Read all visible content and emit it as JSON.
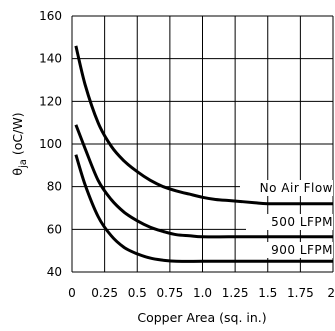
{
  "chart_data": {
    "type": "line",
    "title": "",
    "xlabel": "Copper Area (sq. in.)",
    "ylabel": "θja (oC/W)",
    "xlim": [
      0,
      2
    ],
    "ylim": [
      40,
      160
    ],
    "grid": true,
    "x_ticks": [
      0,
      0.25,
      0.5,
      0.75,
      1,
      1.25,
      1.5,
      1.75,
      2
    ],
    "x_tick_labels": [
      "0",
      "0.25",
      "0.5",
      "0.75",
      "1.0",
      "1.25",
      "1.5",
      "1.75",
      "2"
    ],
    "y_ticks": [
      40,
      60,
      80,
      100,
      120,
      140,
      160
    ],
    "y_tick_labels": [
      "40",
      "60",
      "80",
      "100",
      "120",
      "140",
      "160"
    ],
    "series": [
      {
        "name": "No Air Flow",
        "points": [
          [
            0.03,
            146
          ],
          [
            0.1,
            128
          ],
          [
            0.2,
            110
          ],
          [
            0.3,
            99
          ],
          [
            0.4,
            92
          ],
          [
            0.5,
            87
          ],
          [
            0.6,
            83
          ],
          [
            0.7,
            80
          ],
          [
            0.8,
            78
          ],
          [
            0.9,
            76.5
          ],
          [
            1.0,
            75
          ],
          [
            1.1,
            74
          ],
          [
            1.2,
            73.5
          ],
          [
            1.3,
            73
          ],
          [
            1.4,
            72.5
          ],
          [
            1.5,
            72
          ],
          [
            1.75,
            72
          ],
          [
            2.0,
            72
          ]
        ]
      },
      {
        "name": "500 LFPM",
        "points": [
          [
            0.03,
            109
          ],
          [
            0.1,
            98
          ],
          [
            0.2,
            83
          ],
          [
            0.3,
            74
          ],
          [
            0.4,
            68
          ],
          [
            0.5,
            64
          ],
          [
            0.6,
            61
          ],
          [
            0.7,
            59
          ],
          [
            0.8,
            57.5
          ],
          [
            0.9,
            57
          ],
          [
            1.0,
            56.5
          ],
          [
            1.2,
            56.5
          ],
          [
            1.4,
            56.5
          ],
          [
            1.6,
            56.5
          ],
          [
            1.8,
            56.5
          ],
          [
            2.0,
            56.5
          ]
        ]
      },
      {
        "name": "900 LFPM",
        "points": [
          [
            0.03,
            95
          ],
          [
            0.1,
            81
          ],
          [
            0.2,
            66
          ],
          [
            0.3,
            57
          ],
          [
            0.4,
            51.5
          ],
          [
            0.5,
            48.5
          ],
          [
            0.6,
            46.5
          ],
          [
            0.7,
            45.5
          ],
          [
            0.8,
            45
          ],
          [
            1.0,
            45
          ],
          [
            1.2,
            45
          ],
          [
            1.4,
            45
          ],
          [
            1.6,
            45
          ],
          [
            1.8,
            45
          ],
          [
            2.0,
            45
          ]
        ]
      }
    ]
  }
}
